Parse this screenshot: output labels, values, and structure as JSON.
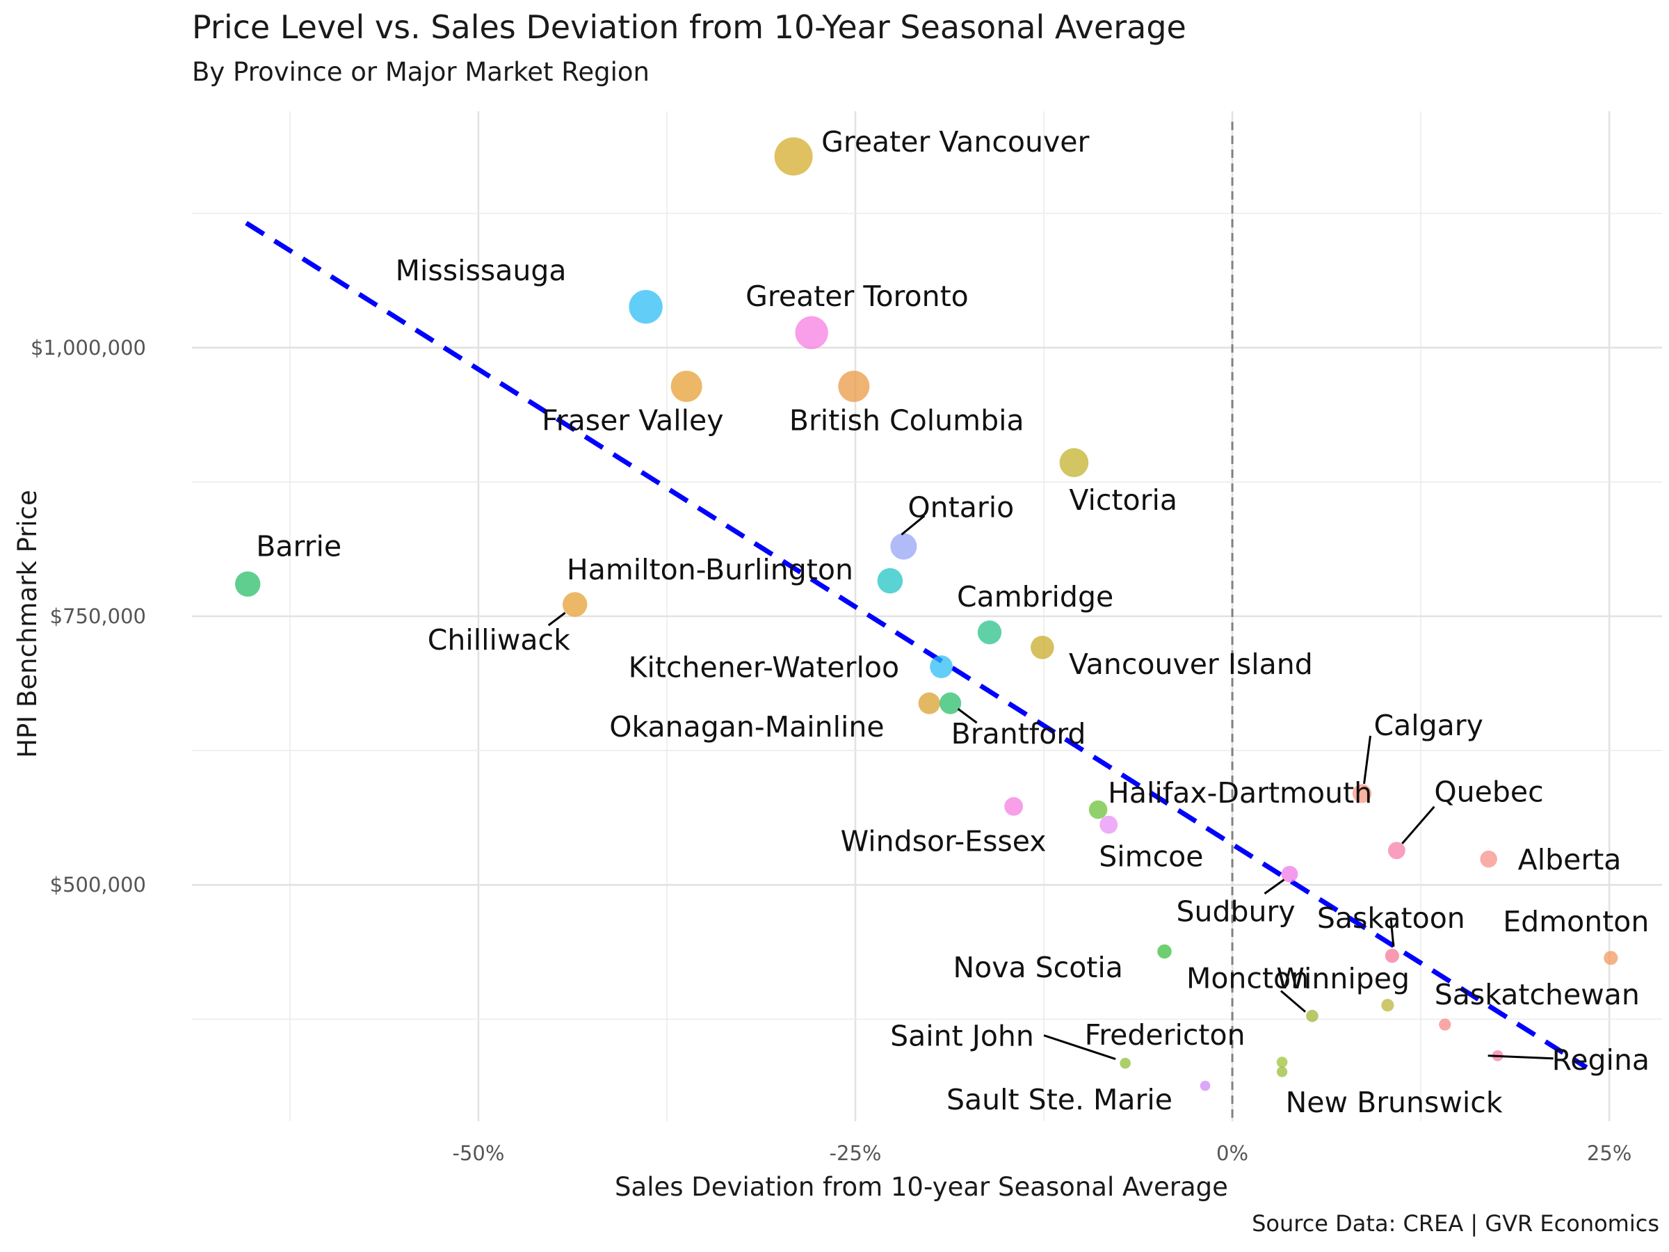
{
  "title": "Price Level vs. Sales Deviation from 10-Year Seasonal Average",
  "subtitle": "By Province or Major Market Region",
  "caption": "Source Data: CREA | GVR Economics",
  "chart_data": {
    "type": "scatter",
    "xlabel": "Sales Deviation from 10-year Seasonal Average",
    "ylabel": "HPI Benchmark Price",
    "xlim": [
      -0.69,
      0.285
    ],
    "ylim": [
      280000,
      1220000
    ],
    "x_ticks": [
      -0.5,
      -0.25,
      0,
      0.25
    ],
    "x_tick_labels": [
      "-50%",
      "-25%",
      "0%",
      "25%"
    ],
    "y_ticks": [
      500000,
      750000,
      1000000
    ],
    "y_tick_labels": [
      "$500,000",
      "$750,000",
      "$1,000,000"
    ],
    "grid": true,
    "reference_line": {
      "x": 0,
      "style": "dashed",
      "color": "#808080"
    },
    "trend_line": {
      "style": "dashed",
      "color": "#0000ff",
      "x_start": -0.654,
      "y_start": 1116000,
      "x_end": 0.235,
      "y_end": 330000
    },
    "points": [
      {
        "name": "Greater Vancouver",
        "x": -0.291,
        "y": 1178000,
        "color": "#d4ac2e"
      },
      {
        "name": "Mississauga",
        "x": -0.389,
        "y": 1038000,
        "color": "#2ebdf5"
      },
      {
        "name": "Greater Toronto",
        "x": -0.279,
        "y": 1014000,
        "color": "#f77de0"
      },
      {
        "name": "Fraser Valley",
        "x": -0.362,
        "y": 964000,
        "color": "#e6a035"
      },
      {
        "name": "British Columbia",
        "x": -0.251,
        "y": 964000,
        "color": "#e99a45"
      },
      {
        "name": "Victoria",
        "x": -0.105,
        "y": 893000,
        "color": "#c3b22d"
      },
      {
        "name": "Ontario",
        "x": -0.218,
        "y": 815000,
        "color": "#95a4f5"
      },
      {
        "name": "Barrie",
        "x": -0.653,
        "y": 780000,
        "color": "#2bbe6a"
      },
      {
        "name": "Hamilton-Burlington",
        "x": -0.227,
        "y": 783000,
        "color": "#22c4c4"
      },
      {
        "name": "Chilliwack",
        "x": -0.436,
        "y": 761000,
        "color": "#e6a035"
      },
      {
        "name": "Cambridge",
        "x": -0.161,
        "y": 735000,
        "color": "#2bc28a"
      },
      {
        "name": "Vancouver Island",
        "x": -0.126,
        "y": 721000,
        "color": "#c9ab2a"
      },
      {
        "name": "Kitchener-Waterloo",
        "x": -0.193,
        "y": 703000,
        "color": "#2ebdf5"
      },
      {
        "name": "Okanagan-Mainline",
        "x": -0.201,
        "y": 669000,
        "color": "#d9a02d"
      },
      {
        "name": "Brantford",
        "x": -0.187,
        "y": 669000,
        "color": "#2bbe6a"
      },
      {
        "name": "Calgary",
        "x": 0.086,
        "y": 585000,
        "color": "#f79a82"
      },
      {
        "name": "Windsor-Essex",
        "x": -0.145,
        "y": 573000,
        "color": "#f77de0"
      },
      {
        "name": "Halifax-Dartmouth",
        "x": -0.089,
        "y": 570000,
        "color": "#6cc23a"
      },
      {
        "name": "Simcoe",
        "x": -0.082,
        "y": 556000,
        "color": "#e892f5"
      },
      {
        "name": "Quebec",
        "x": 0.109,
        "y": 532000,
        "color": "#f77da8"
      },
      {
        "name": "Alberta",
        "x": 0.17,
        "y": 524000,
        "color": "#f5928a"
      },
      {
        "name": "Sudbury",
        "x": 0.038,
        "y": 510000,
        "color": "#f27ae8"
      },
      {
        "name": "Saskatoon",
        "x": 0.106,
        "y": 434000,
        "color": "#f57a98"
      },
      {
        "name": "Edmonton",
        "x": 0.251,
        "y": 432000,
        "color": "#f09a60"
      },
      {
        "name": "Nova Scotia",
        "x": -0.045,
        "y": 438000,
        "color": "#3cbf3c"
      },
      {
        "name": "Moncton",
        "x": 0.053,
        "y": 378000,
        "color": "#a3b53a"
      },
      {
        "name": "Winnipeg",
        "x": 0.103,
        "y": 388000,
        "color": "#bcb63a"
      },
      {
        "name": "Saskatchewan",
        "x": 0.141,
        "y": 370000,
        "color": "#f58a8a"
      },
      {
        "name": "Regina",
        "x": 0.176,
        "y": 341000,
        "color": "#f77da8"
      },
      {
        "name": "Saint John",
        "x": -0.071,
        "y": 334000,
        "color": "#8fbf3a"
      },
      {
        "name": "Fredericton",
        "x": 0.033,
        "y": 335000,
        "color": "#a0c23a"
      },
      {
        "name": "New Brunswick",
        "x": 0.033,
        "y": 326000,
        "color": "#98be3a"
      },
      {
        "name": "Sault Ste. Marie",
        "x": -0.018,
        "y": 313000,
        "color": "#d08af5"
      }
    ]
  }
}
